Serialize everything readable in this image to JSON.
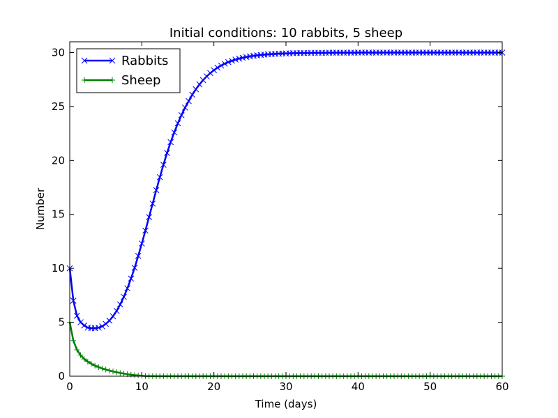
{
  "chart_data": {
    "type": "line",
    "title": "Initial conditions: 10 rabbits, 5 sheep",
    "xlabel": "Time (days)",
    "ylabel": "Number",
    "xlim": [
      0,
      60
    ],
    "ylim": [
      0,
      31
    ],
    "xticks": [
      0,
      10,
      20,
      30,
      40,
      50,
      60
    ],
    "yticks": [
      0,
      5,
      10,
      15,
      20,
      25,
      30
    ],
    "legend_position": "top-left",
    "grid": false,
    "x": [
      0,
      0.5,
      1,
      1.5,
      2,
      2.5,
      3,
      3.5,
      4,
      4.5,
      5,
      5.5,
      6,
      6.5,
      7,
      7.5,
      8,
      8.5,
      9,
      9.5,
      10,
      10.5,
      11,
      11.5,
      12,
      12.5,
      13,
      13.5,
      14,
      14.5,
      15,
      15.5,
      16,
      16.5,
      17,
      17.5,
      18,
      18.5,
      19,
      19.5,
      20,
      20.5,
      21,
      21.5,
      22,
      22.5,
      23,
      23.5,
      24,
      24.5,
      25,
      25.5,
      26,
      26.5,
      27,
      27.5,
      28,
      28.5,
      29,
      29.5,
      30,
      30.5,
      31,
      31.5,
      32,
      32.5,
      33,
      33.5,
      34,
      34.5,
      35,
      35.5,
      36,
      36.5,
      37,
      37.5,
      38,
      38.5,
      39,
      39.5,
      40,
      40.5,
      41,
      41.5,
      42,
      42.5,
      43,
      43.5,
      44,
      44.5,
      45,
      45.5,
      46,
      46.5,
      47,
      47.5,
      48,
      48.5,
      49,
      49.5,
      50,
      50.5,
      51,
      51.5,
      52,
      52.5,
      53,
      53.5,
      54,
      54.5,
      55,
      55.5,
      56,
      56.5,
      57,
      57.5,
      58,
      58.5,
      59,
      59.5,
      60
    ],
    "series": [
      {
        "name": "Rabbits",
        "color": "#0000ff",
        "marker": "x",
        "values": [
          10,
          7,
          5.6,
          5,
          4.7,
          4.5,
          4.45,
          4.45,
          4.5,
          4.62,
          4.85,
          5.15,
          5.55,
          6.05,
          6.65,
          7.35,
          8.15,
          9.05,
          10.05,
          11.15,
          12.3,
          13.5,
          14.75,
          16,
          17.25,
          18.45,
          19.6,
          20.7,
          21.7,
          22.6,
          23.45,
          24.2,
          24.9,
          25.5,
          26.1,
          26.6,
          27.05,
          27.45,
          27.8,
          28.1,
          28.37,
          28.6,
          28.8,
          28.97,
          29.12,
          29.24,
          29.35,
          29.44,
          29.52,
          29.59,
          29.65,
          29.7,
          29.74,
          29.78,
          29.81,
          29.84,
          29.86,
          29.88,
          29.9,
          29.91,
          29.92,
          29.93,
          29.94,
          29.95,
          29.96,
          29.96,
          29.97,
          29.97,
          29.98,
          29.98,
          29.98,
          29.98,
          29.99,
          29.99,
          29.99,
          29.99,
          29.99,
          29.99,
          29.99,
          29.99,
          30,
          30,
          30,
          30,
          30,
          30,
          30,
          30,
          30,
          30,
          30,
          30,
          30,
          30,
          30,
          30,
          30,
          30,
          30,
          30,
          30,
          30,
          30,
          30,
          30,
          30,
          30,
          30,
          30,
          30,
          30,
          30,
          30,
          30,
          30,
          30,
          30,
          30,
          30,
          30,
          30
        ]
      },
      {
        "name": "Sheep",
        "color": "#008000",
        "marker": "+",
        "values": [
          5,
          3.3,
          2.45,
          1.95,
          1.6,
          1.35,
          1.15,
          0.98,
          0.84,
          0.72,
          0.62,
          0.52,
          0.44,
          0.37,
          0.3,
          0.24,
          0.19,
          0.14,
          0.1,
          0.07,
          0.04,
          0.02,
          0.01,
          0.005,
          0,
          0,
          0,
          0,
          0,
          0,
          0,
          0,
          0,
          0,
          0,
          0,
          0,
          0,
          0,
          0,
          0,
          0,
          0,
          0,
          0,
          0,
          0,
          0,
          0,
          0,
          0,
          0,
          0,
          0,
          0,
          0,
          0,
          0,
          0,
          0,
          0,
          0,
          0,
          0,
          0,
          0,
          0,
          0,
          0,
          0,
          0,
          0,
          0,
          0,
          0,
          0,
          0,
          0,
          0,
          0,
          0,
          0,
          0,
          0,
          0,
          0,
          0,
          0,
          0,
          0,
          0,
          0,
          0,
          0,
          0,
          0,
          0,
          0,
          0,
          0,
          0,
          0,
          0,
          0,
          0,
          0,
          0,
          0,
          0,
          0,
          0,
          0,
          0,
          0,
          0,
          0,
          0,
          0,
          0,
          0,
          0
        ]
      }
    ]
  }
}
